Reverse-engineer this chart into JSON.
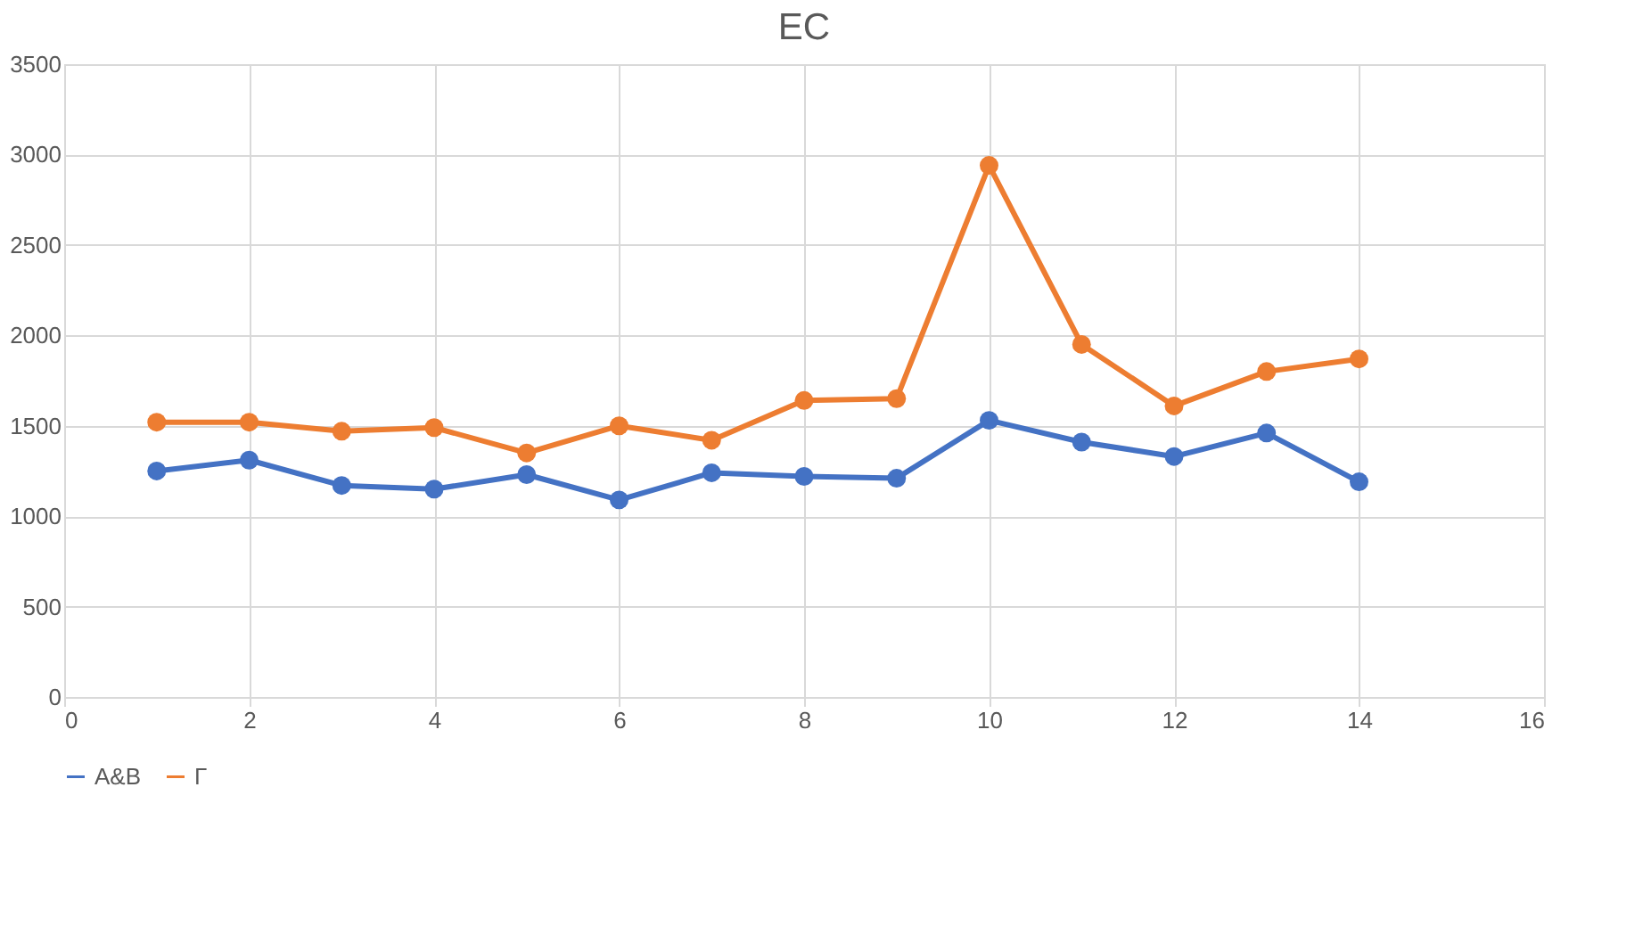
{
  "chart_data": {
    "type": "line",
    "title": "EC",
    "x": [
      1,
      2,
      3,
      4,
      5,
      6,
      7,
      8,
      9,
      10,
      11,
      12,
      13,
      14
    ],
    "series": [
      {
        "name": "A&B",
        "color": "#4472c4",
        "values": [
          1250,
          1310,
          1170,
          1150,
          1230,
          1090,
          1240,
          1220,
          1210,
          1530,
          1410,
          1330,
          1460,
          1190
        ]
      },
      {
        "name": "Γ",
        "color": "#ed7d31",
        "values": [
          1520,
          1520,
          1470,
          1490,
          1350,
          1500,
          1420,
          1640,
          1650,
          2940,
          1950,
          1610,
          1800,
          1870
        ]
      }
    ],
    "xlim": [
      0,
      16
    ],
    "xticks": [
      0,
      2,
      4,
      6,
      8,
      10,
      12,
      14,
      16
    ],
    "ylim": [
      0,
      3500
    ],
    "yticks": [
      0,
      500,
      1000,
      1500,
      2000,
      2500,
      3000,
      3500
    ],
    "grid": true,
    "legend": "bottom",
    "marker": "circle",
    "line_style": "solid"
  }
}
